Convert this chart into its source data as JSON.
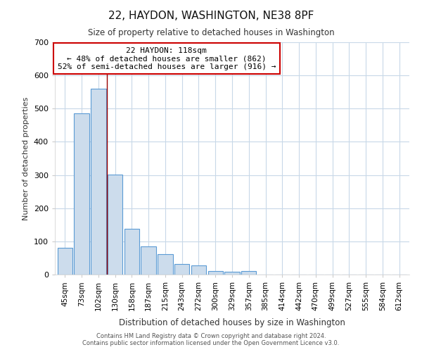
{
  "title": "22, HAYDON, WASHINGTON, NE38 8PF",
  "subtitle": "Size of property relative to detached houses in Washington",
  "xlabel": "Distribution of detached houses by size in Washington",
  "ylabel": "Number of detached properties",
  "footer_line1": "Contains HM Land Registry data © Crown copyright and database right 2024.",
  "footer_line2": "Contains public sector information licensed under the Open Government Licence v3.0.",
  "bar_labels": [
    "45sqm",
    "73sqm",
    "102sqm",
    "130sqm",
    "158sqm",
    "187sqm",
    "215sqm",
    "243sqm",
    "272sqm",
    "300sqm",
    "329sqm",
    "357sqm",
    "385sqm",
    "414sqm",
    "442sqm",
    "470sqm",
    "499sqm",
    "527sqm",
    "555sqm",
    "584sqm",
    "612sqm"
  ],
  "bar_values": [
    80,
    485,
    560,
    302,
    138,
    85,
    62,
    32,
    28,
    10,
    8,
    10,
    0,
    0,
    0,
    0,
    0,
    0,
    0,
    0,
    0
  ],
  "bar_color": "#ccdcec",
  "bar_edge_color": "#5b9bd5",
  "ylim": [
    0,
    700
  ],
  "yticks": [
    0,
    100,
    200,
    300,
    400,
    500,
    600,
    700
  ],
  "red_line_x": 2.5,
  "annotation_title": "22 HAYDON: 118sqm",
  "annotation_line1": "← 48% of detached houses are smaller (862)",
  "annotation_line2": "52% of semi-detached houses are larger (916) →",
  "annotation_box_color": "#ffffff",
  "annotation_border_color": "#cc0000",
  "grid_color": "#c8d8e8",
  "background_color": "#ffffff",
  "plot_bg_color": "#ffffff"
}
